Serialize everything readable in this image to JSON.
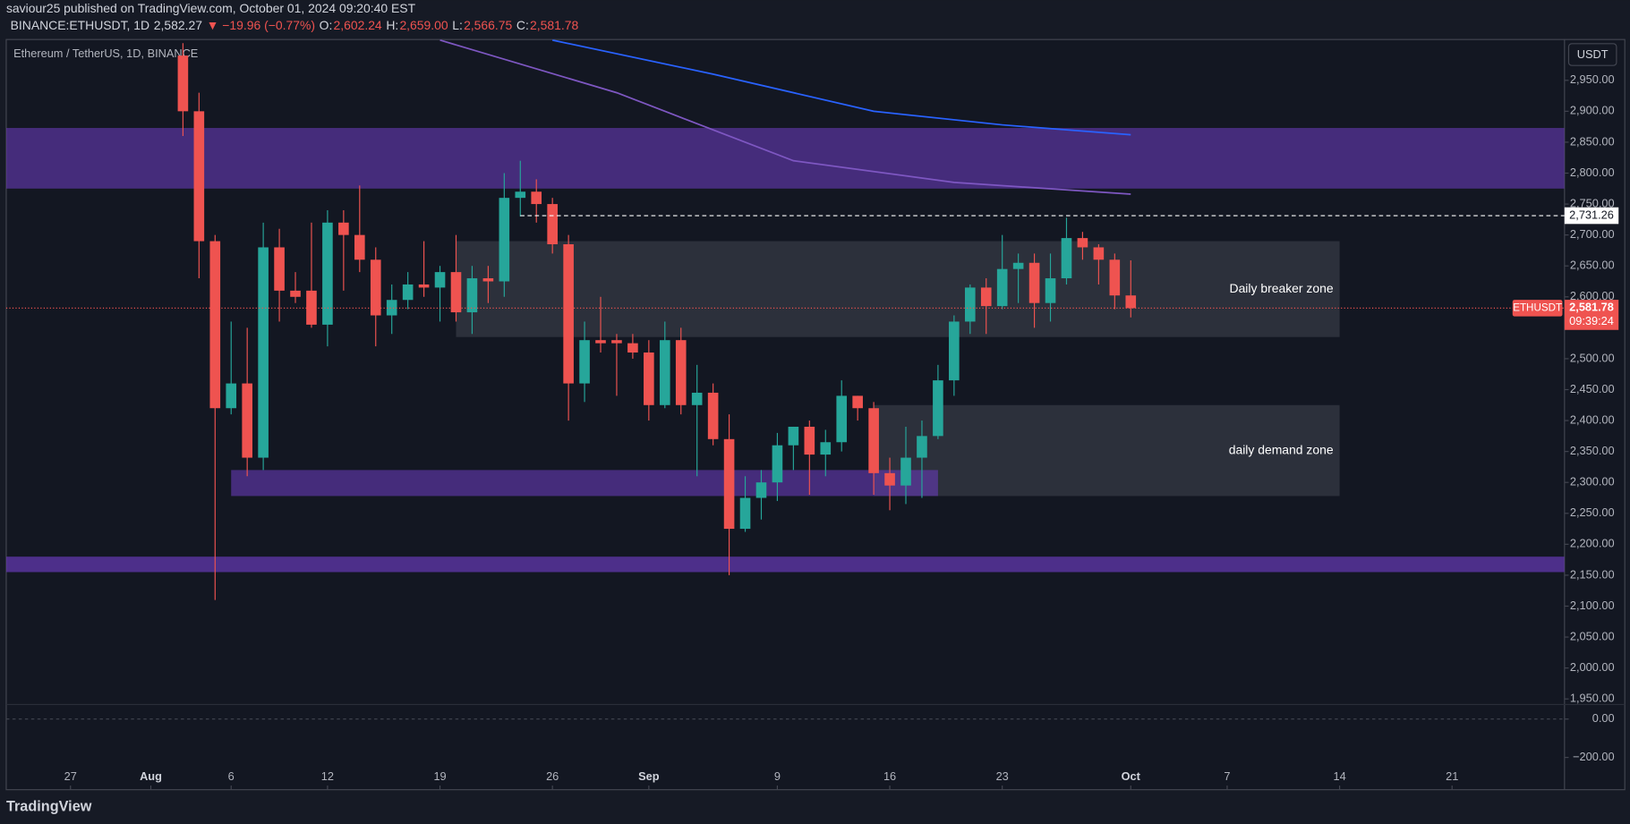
{
  "header": {
    "publisher": "saviour25 published on TradingView.com, October 01, 2024 09:20:40 EST"
  },
  "chart_data": {
    "type": "candlestick",
    "symbol": "BINANCE:ETHUSDT, 1D",
    "last": "2,582.27",
    "change": "▼ −19.96 (−0.77%)",
    "ohlc": [
      {
        "label": "O:",
        "value": "2,602.24"
      },
      {
        "label": "H:",
        "value": "2,659.00"
      },
      {
        "label": "L:",
        "value": "2,566.75"
      },
      {
        "label": "C:",
        "value": "2,581.78"
      }
    ],
    "title": "Ethereum / TetherUS, 1D, BINANCE",
    "currency": "USDT",
    "up_color": "#26a69a",
    "down_color": "#ef5350",
    "grid": false,
    "x": [
      "Aug 3",
      "Aug 4",
      "Aug 5",
      "Aug 6",
      "Aug 7",
      "Aug 8",
      "Aug 9",
      "Aug 10",
      "Aug 11",
      "Aug 12",
      "Aug 13",
      "Aug 14",
      "Aug 15",
      "Aug 16",
      "Aug 17",
      "Aug 18",
      "Aug 19",
      "Aug 20",
      "Aug 21",
      "Aug 22",
      "Aug 23",
      "Aug 24",
      "Aug 25",
      "Aug 26",
      "Aug 27",
      "Aug 28",
      "Aug 29",
      "Aug 30",
      "Aug 31",
      "Sep 1",
      "Sep 2",
      "Sep 3",
      "Sep 4",
      "Sep 5",
      "Sep 6",
      "Sep 7",
      "Sep 8",
      "Sep 9",
      "Sep 10",
      "Sep 11",
      "Sep 12",
      "Sep 13",
      "Sep 14",
      "Sep 15",
      "Sep 16",
      "Sep 17",
      "Sep 18",
      "Sep 19",
      "Sep 20",
      "Sep 21",
      "Sep 22",
      "Sep 23",
      "Sep 24",
      "Sep 25",
      "Sep 26",
      "Sep 27",
      "Sep 28",
      "Sep 29",
      "Sep 30",
      "Oct 1"
    ],
    "open": [
      2990,
      2900,
      2690,
      2420,
      2460,
      2340,
      2680,
      2610,
      2610,
      2555,
      2720,
      2700,
      2660,
      2570,
      2595,
      2620,
      2615,
      2640,
      2575,
      2630,
      2625,
      2760,
      2770,
      2750,
      2685,
      2460,
      2530,
      2530,
      2525,
      2510,
      2425,
      2530,
      2425,
      2445,
      2370,
      2225,
      2275,
      2300,
      2360,
      2390,
      2345,
      2365,
      2440,
      2420,
      2315,
      2295,
      2340,
      2375,
      2465,
      2560,
      2615,
      2585,
      2645,
      2655,
      2590,
      2630,
      2695,
      2680,
      2660,
      2602.24
    ],
    "high": [
      3010,
      2930,
      2700,
      2560,
      2550,
      2720,
      2710,
      2640,
      2720,
      2740,
      2740,
      2780,
      2680,
      2620,
      2640,
      2690,
      2650,
      2700,
      2650,
      2650,
      2800,
      2820,
      2790,
      2760,
      2700,
      2560,
      2600,
      2540,
      2540,
      2530,
      2560,
      2550,
      2490,
      2460,
      2410,
      2310,
      2320,
      2380,
      2390,
      2400,
      2385,
      2465,
      2440,
      2430,
      2340,
      2390,
      2400,
      2490,
      2570,
      2620,
      2630,
      2700,
      2670,
      2670,
      2670,
      2728,
      2705,
      2685,
      2670,
      2659
    ],
    "low": [
      2860,
      2630,
      2110,
      2410,
      2310,
      2320,
      2560,
      2590,
      2550,
      2520,
      2610,
      2640,
      2520,
      2540,
      2580,
      2600,
      2560,
      2560,
      2540,
      2590,
      2600,
      2730,
      2720,
      2670,
      2400,
      2430,
      2510,
      2440,
      2500,
      2400,
      2420,
      2410,
      2310,
      2360,
      2150,
      2220,
      2240,
      2270,
      2320,
      2280,
      2310,
      2350,
      2400,
      2280,
      2255,
      2265,
      2275,
      2370,
      2440,
      2540,
      2540,
      2580,
      2590,
      2550,
      2560,
      2620,
      2660,
      2620,
      2580,
      2566.75
    ],
    "close": [
      2900,
      2690,
      2420,
      2460,
      2340,
      2680,
      2610,
      2600,
      2555,
      2720,
      2700,
      2660,
      2570,
      2595,
      2620,
      2615,
      2640,
      2575,
      2630,
      2625,
      2760,
      2770,
      2750,
      2685,
      2460,
      2530,
      2525,
      2525,
      2510,
      2425,
      2530,
      2425,
      2445,
      2370,
      2225,
      2275,
      2300,
      2360,
      2390,
      2345,
      2365,
      2440,
      2420,
      2315,
      2295,
      2340,
      2375,
      2465,
      2560,
      2615,
      2585,
      2645,
      2655,
      2590,
      2630,
      2695,
      2680,
      2660,
      2602.24,
      2581.78
    ],
    "xlim": [
      "Jul 23",
      "Oct 28"
    ],
    "xticks": [
      {
        "value": "Jul 27",
        "label": "27"
      },
      {
        "value": "Aug 1",
        "label": "Aug"
      },
      {
        "value": "Aug 6",
        "label": "6"
      },
      {
        "value": "Aug 12",
        "label": "12"
      },
      {
        "value": "Aug 19",
        "label": "19"
      },
      {
        "value": "Aug 26",
        "label": "26"
      },
      {
        "value": "Sep 1",
        "label": "Sep"
      },
      {
        "value": "Sep 9",
        "label": "9"
      },
      {
        "value": "Sep 16",
        "label": "16"
      },
      {
        "value": "Sep 23",
        "label": "23"
      },
      {
        "value": "Oct 1",
        "label": "Oct"
      },
      {
        "value": "Oct 7",
        "label": "7"
      },
      {
        "value": "Oct 14",
        "label": "14"
      },
      {
        "value": "Oct 21",
        "label": "21"
      }
    ],
    "ylim": [
      1941,
      3016
    ],
    "yticks": [
      {
        "value": 1950,
        "label": "1,950.00"
      },
      {
        "value": 2000,
        "label": "2,000.00"
      },
      {
        "value": 2050,
        "label": "2,050.00"
      },
      {
        "value": 2100,
        "label": "2,100.00"
      },
      {
        "value": 2150,
        "label": "2,150.00"
      },
      {
        "value": 2200,
        "label": "2,200.00"
      },
      {
        "value": 2250,
        "label": "2,250.00"
      },
      {
        "value": 2300,
        "label": "2,300.00"
      },
      {
        "value": 2350,
        "label": "2,350.00"
      },
      {
        "value": 2400,
        "label": "2,400.00"
      },
      {
        "value": 2450,
        "label": "2,450.00"
      },
      {
        "value": 2500,
        "label": "2,500.00"
      },
      {
        "value": 2600,
        "label": "2,600.00"
      },
      {
        "value": 2650,
        "label": "2,650.00"
      },
      {
        "value": 2700,
        "label": "2,700.00"
      },
      {
        "value": 2750,
        "label": "2,750.00"
      },
      {
        "value": 2800,
        "label": "2,800.00"
      },
      {
        "value": 2850,
        "label": "2,850.00"
      },
      {
        "value": 2900,
        "label": "2,900.00"
      },
      {
        "value": 2950,
        "label": "2,950.00"
      }
    ],
    "ma_lines": [
      {
        "color": "#2962ff",
        "x": [
          "Aug 26",
          "Sep 5",
          "Sep 15",
          "Sep 23",
          "Oct 1"
        ],
        "values": [
          3015,
          2960,
          2900,
          2878,
          2862
        ]
      },
      {
        "color": "#7e57c2",
        "x": [
          "Aug 19",
          "Aug 30",
          "Sep 10",
          "Sep 20",
          "Oct 1"
        ],
        "values": [
          3015,
          2930,
          2820,
          2785,
          2766
        ]
      }
    ],
    "zones": [
      {
        "color": "#673ab7",
        "opacity": 0.6,
        "ylim": [
          2775,
          2873
        ]
      },
      {
        "color": "#787b86",
        "opacity": 0.25,
        "ylim": [
          2535,
          2690
        ],
        "x": [
          "Aug 20",
          "Oct 14"
        ],
        "label": "Daily breaker zone"
      },
      {
        "color": "#787b86",
        "opacity": 0.25,
        "ylim": [
          2278,
          2425
        ],
        "x": [
          "Sep 15",
          "Oct 14"
        ],
        "label": "daily demand zone"
      },
      {
        "color": "#673ab7",
        "opacity": 0.6,
        "ylim": [
          2278,
          2320
        ],
        "x": [
          "Aug 6",
          "Sep 19"
        ]
      },
      {
        "color": "#673ab7",
        "opacity": 0.7,
        "ylim": [
          2155,
          2180
        ]
      }
    ],
    "level": {
      "value": 2731.26,
      "label": "2,731.26"
    },
    "last_price": {
      "value": 2581.78,
      "label": "2,581.78",
      "name": "ETHUSDT",
      "countdown": "09:39:24"
    },
    "macd_ylim": [
      -368,
      76
    ],
    "macd_yticks": [
      {
        "value": 0,
        "label": "0.00"
      },
      {
        "value": -200,
        "label": "−200.00"
      }
    ]
  },
  "footer": {
    "brand": "TradingView"
  }
}
